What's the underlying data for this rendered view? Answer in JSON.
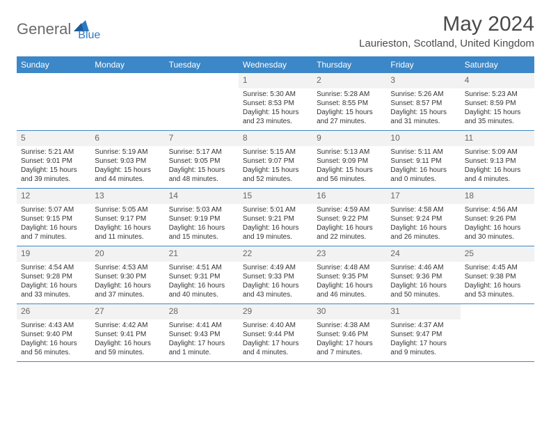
{
  "logo": {
    "part1": "General",
    "part2": "Blue"
  },
  "title": "May 2024",
  "location": "Laurieston, Scotland, United Kingdom",
  "colors": {
    "header_bg": "#3b87c8",
    "header_text": "#ffffff",
    "logo_gray": "#6a6a6a",
    "logo_blue": "#2f78c2",
    "title_color": "#4a4a4a",
    "daynum_bg": "#f2f2f2",
    "border": "#3b87c8"
  },
  "dayNames": [
    "Sunday",
    "Monday",
    "Tuesday",
    "Wednesday",
    "Thursday",
    "Friday",
    "Saturday"
  ],
  "weeks": [
    [
      {
        "day": "",
        "sunrise": "",
        "sunset": "",
        "daylight": ""
      },
      {
        "day": "",
        "sunrise": "",
        "sunset": "",
        "daylight": ""
      },
      {
        "day": "",
        "sunrise": "",
        "sunset": "",
        "daylight": ""
      },
      {
        "day": "1",
        "sunrise": "Sunrise: 5:30 AM",
        "sunset": "Sunset: 8:53 PM",
        "daylight": "Daylight: 15 hours and 23 minutes."
      },
      {
        "day": "2",
        "sunrise": "Sunrise: 5:28 AM",
        "sunset": "Sunset: 8:55 PM",
        "daylight": "Daylight: 15 hours and 27 minutes."
      },
      {
        "day": "3",
        "sunrise": "Sunrise: 5:26 AM",
        "sunset": "Sunset: 8:57 PM",
        "daylight": "Daylight: 15 hours and 31 minutes."
      },
      {
        "day": "4",
        "sunrise": "Sunrise: 5:23 AM",
        "sunset": "Sunset: 8:59 PM",
        "daylight": "Daylight: 15 hours and 35 minutes."
      }
    ],
    [
      {
        "day": "5",
        "sunrise": "Sunrise: 5:21 AM",
        "sunset": "Sunset: 9:01 PM",
        "daylight": "Daylight: 15 hours and 39 minutes."
      },
      {
        "day": "6",
        "sunrise": "Sunrise: 5:19 AM",
        "sunset": "Sunset: 9:03 PM",
        "daylight": "Daylight: 15 hours and 44 minutes."
      },
      {
        "day": "7",
        "sunrise": "Sunrise: 5:17 AM",
        "sunset": "Sunset: 9:05 PM",
        "daylight": "Daylight: 15 hours and 48 minutes."
      },
      {
        "day": "8",
        "sunrise": "Sunrise: 5:15 AM",
        "sunset": "Sunset: 9:07 PM",
        "daylight": "Daylight: 15 hours and 52 minutes."
      },
      {
        "day": "9",
        "sunrise": "Sunrise: 5:13 AM",
        "sunset": "Sunset: 9:09 PM",
        "daylight": "Daylight: 15 hours and 56 minutes."
      },
      {
        "day": "10",
        "sunrise": "Sunrise: 5:11 AM",
        "sunset": "Sunset: 9:11 PM",
        "daylight": "Daylight: 16 hours and 0 minutes."
      },
      {
        "day": "11",
        "sunrise": "Sunrise: 5:09 AM",
        "sunset": "Sunset: 9:13 PM",
        "daylight": "Daylight: 16 hours and 4 minutes."
      }
    ],
    [
      {
        "day": "12",
        "sunrise": "Sunrise: 5:07 AM",
        "sunset": "Sunset: 9:15 PM",
        "daylight": "Daylight: 16 hours and 7 minutes."
      },
      {
        "day": "13",
        "sunrise": "Sunrise: 5:05 AM",
        "sunset": "Sunset: 9:17 PM",
        "daylight": "Daylight: 16 hours and 11 minutes."
      },
      {
        "day": "14",
        "sunrise": "Sunrise: 5:03 AM",
        "sunset": "Sunset: 9:19 PM",
        "daylight": "Daylight: 16 hours and 15 minutes."
      },
      {
        "day": "15",
        "sunrise": "Sunrise: 5:01 AM",
        "sunset": "Sunset: 9:21 PM",
        "daylight": "Daylight: 16 hours and 19 minutes."
      },
      {
        "day": "16",
        "sunrise": "Sunrise: 4:59 AM",
        "sunset": "Sunset: 9:22 PM",
        "daylight": "Daylight: 16 hours and 22 minutes."
      },
      {
        "day": "17",
        "sunrise": "Sunrise: 4:58 AM",
        "sunset": "Sunset: 9:24 PM",
        "daylight": "Daylight: 16 hours and 26 minutes."
      },
      {
        "day": "18",
        "sunrise": "Sunrise: 4:56 AM",
        "sunset": "Sunset: 9:26 PM",
        "daylight": "Daylight: 16 hours and 30 minutes."
      }
    ],
    [
      {
        "day": "19",
        "sunrise": "Sunrise: 4:54 AM",
        "sunset": "Sunset: 9:28 PM",
        "daylight": "Daylight: 16 hours and 33 minutes."
      },
      {
        "day": "20",
        "sunrise": "Sunrise: 4:53 AM",
        "sunset": "Sunset: 9:30 PM",
        "daylight": "Daylight: 16 hours and 37 minutes."
      },
      {
        "day": "21",
        "sunrise": "Sunrise: 4:51 AM",
        "sunset": "Sunset: 9:31 PM",
        "daylight": "Daylight: 16 hours and 40 minutes."
      },
      {
        "day": "22",
        "sunrise": "Sunrise: 4:49 AM",
        "sunset": "Sunset: 9:33 PM",
        "daylight": "Daylight: 16 hours and 43 minutes."
      },
      {
        "day": "23",
        "sunrise": "Sunrise: 4:48 AM",
        "sunset": "Sunset: 9:35 PM",
        "daylight": "Daylight: 16 hours and 46 minutes."
      },
      {
        "day": "24",
        "sunrise": "Sunrise: 4:46 AM",
        "sunset": "Sunset: 9:36 PM",
        "daylight": "Daylight: 16 hours and 50 minutes."
      },
      {
        "day": "25",
        "sunrise": "Sunrise: 4:45 AM",
        "sunset": "Sunset: 9:38 PM",
        "daylight": "Daylight: 16 hours and 53 minutes."
      }
    ],
    [
      {
        "day": "26",
        "sunrise": "Sunrise: 4:43 AM",
        "sunset": "Sunset: 9:40 PM",
        "daylight": "Daylight: 16 hours and 56 minutes."
      },
      {
        "day": "27",
        "sunrise": "Sunrise: 4:42 AM",
        "sunset": "Sunset: 9:41 PM",
        "daylight": "Daylight: 16 hours and 59 minutes."
      },
      {
        "day": "28",
        "sunrise": "Sunrise: 4:41 AM",
        "sunset": "Sunset: 9:43 PM",
        "daylight": "Daylight: 17 hours and 1 minute."
      },
      {
        "day": "29",
        "sunrise": "Sunrise: 4:40 AM",
        "sunset": "Sunset: 9:44 PM",
        "daylight": "Daylight: 17 hours and 4 minutes."
      },
      {
        "day": "30",
        "sunrise": "Sunrise: 4:38 AM",
        "sunset": "Sunset: 9:46 PM",
        "daylight": "Daylight: 17 hours and 7 minutes."
      },
      {
        "day": "31",
        "sunrise": "Sunrise: 4:37 AM",
        "sunset": "Sunset: 9:47 PM",
        "daylight": "Daylight: 17 hours and 9 minutes."
      },
      {
        "day": "",
        "sunrise": "",
        "sunset": "",
        "daylight": ""
      }
    ]
  ]
}
